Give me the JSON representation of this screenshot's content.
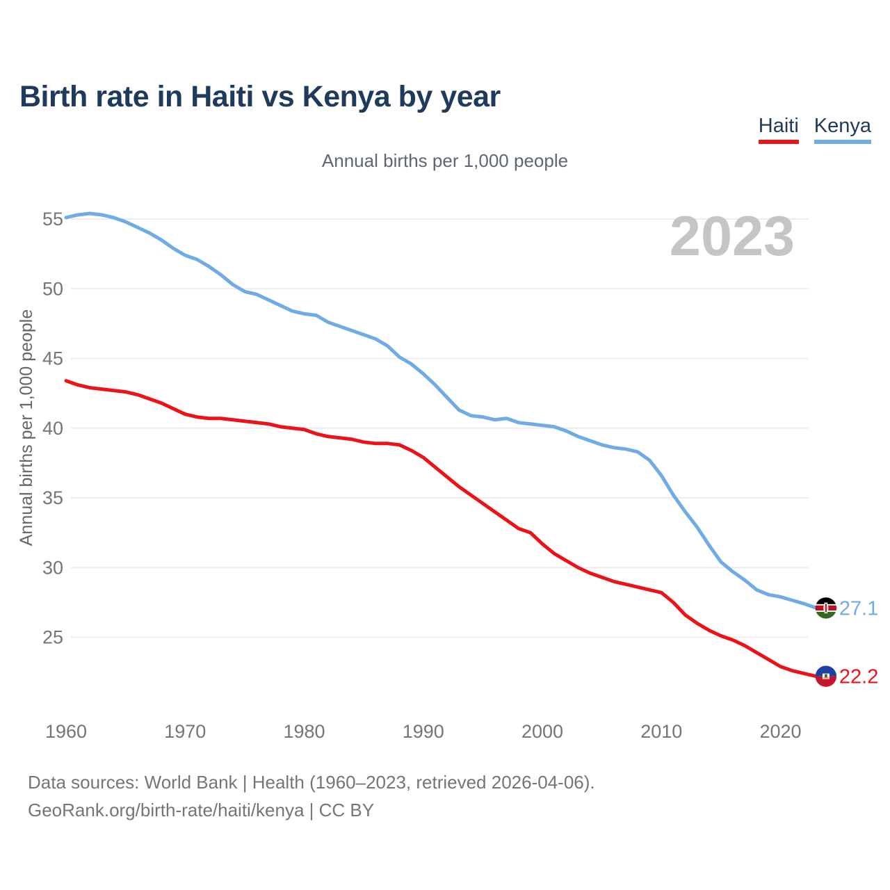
{
  "title": "Birth rate in Haiti vs Kenya by year",
  "subtitle": "Annual births per 1,000 people",
  "watermark": "2023",
  "footer": {
    "line1": "Data sources: World Bank | Health (1960–2023, retrieved 2026-04-06).",
    "line2": "GeoRank.org/birth-rate/haiti/kenya | CC BY"
  },
  "colors": {
    "haiti": "#ec1218",
    "kenya": "#6fabe4",
    "title_text": "#1e3a5c",
    "axis_text": "#757575",
    "gridline": "#ececec",
    "watermark_text": "#c5c5c5"
  },
  "chart_data": {
    "type": "line",
    "title": "Birth rate in Haiti vs Kenya by year",
    "xlabel": "",
    "ylabel": "Annual births per 1,000 people",
    "grid": true,
    "legend_position": "top-right",
    "xlim": [
      1960,
      2023
    ],
    "ylim": [
      21.5,
      56.5
    ],
    "xticks": [
      1960,
      1970,
      1980,
      1990,
      2000,
      2010,
      2020
    ],
    "yticks": [
      25,
      30,
      35,
      40,
      45,
      50,
      55
    ],
    "x": [
      1960,
      1961,
      1962,
      1963,
      1964,
      1965,
      1966,
      1967,
      1968,
      1969,
      1970,
      1971,
      1972,
      1973,
      1974,
      1975,
      1976,
      1977,
      1978,
      1979,
      1980,
      1981,
      1982,
      1983,
      1984,
      1985,
      1986,
      1987,
      1988,
      1989,
      1990,
      1991,
      1992,
      1993,
      1994,
      1995,
      1996,
      1997,
      1998,
      1999,
      2000,
      2001,
      2002,
      2003,
      2004,
      2005,
      2006,
      2007,
      2008,
      2009,
      2010,
      2011,
      2012,
      2013,
      2014,
      2015,
      2016,
      2017,
      2018,
      2019,
      2020,
      2021,
      2022,
      2023
    ],
    "series": [
      {
        "name": "Kenya",
        "color": "#6fabe4",
        "end_label": "27.1",
        "flag": "kenya",
        "values": [
          55.1,
          55.3,
          55.4,
          55.3,
          55.1,
          54.8,
          54.4,
          54.0,
          53.5,
          52.9,
          52.4,
          52.1,
          51.6,
          51.0,
          50.3,
          49.8,
          49.6,
          49.2,
          48.8,
          48.4,
          48.2,
          48.1,
          47.6,
          47.3,
          47.0,
          46.7,
          46.4,
          45.9,
          45.1,
          44.6,
          43.9,
          43.1,
          42.2,
          41.3,
          40.9,
          40.8,
          40.6,
          40.7,
          40.4,
          40.3,
          40.2,
          40.1,
          39.8,
          39.4,
          39.1,
          38.8,
          38.6,
          38.5,
          38.3,
          37.7,
          36.6,
          35.2,
          34.0,
          32.9,
          31.6,
          30.4,
          29.7,
          29.1,
          28.4,
          28.05,
          27.9,
          27.65,
          27.4,
          27.1
        ]
      },
      {
        "name": "Haiti",
        "color": "#ec1218",
        "end_label": "22.2",
        "flag": "haiti",
        "values": [
          43.4,
          43.1,
          42.9,
          42.8,
          42.7,
          42.6,
          42.4,
          42.1,
          41.8,
          41.4,
          41.0,
          40.8,
          40.7,
          40.7,
          40.6,
          40.5,
          40.4,
          40.3,
          40.1,
          40.0,
          39.9,
          39.6,
          39.4,
          39.3,
          39.2,
          39.0,
          38.9,
          38.9,
          38.8,
          38.4,
          37.9,
          37.2,
          36.5,
          35.8,
          35.2,
          34.6,
          34.0,
          33.4,
          32.8,
          32.5,
          31.7,
          31.0,
          30.5,
          30.0,
          29.6,
          29.3,
          29.0,
          28.8,
          28.6,
          28.4,
          28.2,
          27.5,
          26.6,
          26.0,
          25.5,
          25.1,
          24.8,
          24.4,
          23.9,
          23.4,
          22.9,
          22.6,
          22.4,
          22.2
        ]
      }
    ]
  }
}
